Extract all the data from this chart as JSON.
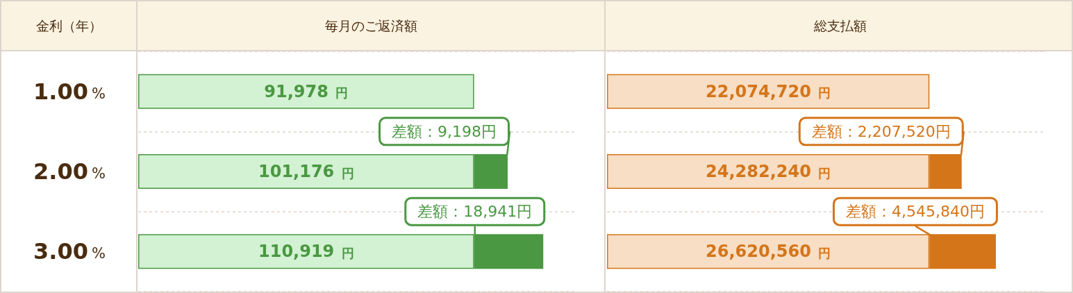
{
  "chart_data": [
    {
      "type": "bar",
      "orientation": "horizontal",
      "stacked": true,
      "title": "毎月のご返済額",
      "ylabel": "金利（年）",
      "categories": [
        "1.00%",
        "2.00%",
        "3.00%"
      ],
      "series": [
        {
          "color": "#d3f1d3",
          "values": [
            91978,
            91978,
            91978
          ]
        },
        {
          "color": "#4a9842",
          "values": [
            null,
            9198,
            18941
          ],
          "value_labels": [
            null,
            "差額：9,198円",
            "差額：18,941円"
          ]
        }
      ],
      "totals": [
        "91,978 円",
        "101,176 円",
        "110,919 円"
      ],
      "grid": "y",
      "tick_labels": "y"
    },
    {
      "type": "bar",
      "orientation": "horizontal",
      "stacked": true,
      "title": "総支払額",
      "categories": [
        "1.00%",
        "2.00%",
        "3.00%"
      ],
      "series": [
        {
          "color": "#f7dec4",
          "values": [
            22074720,
            22074720,
            22074720
          ]
        },
        {
          "color": "#d4751a",
          "values": [
            null,
            2207520,
            4545840
          ],
          "value_labels": [
            null,
            "差額：2,207,520円",
            "差額：4,545,840円"
          ]
        }
      ],
      "totals": [
        "22,074,720 円",
        "24,282,240 円",
        "26,620,560 円"
      ],
      "grid": "y",
      "tick_labels": false
    }
  ]
}
